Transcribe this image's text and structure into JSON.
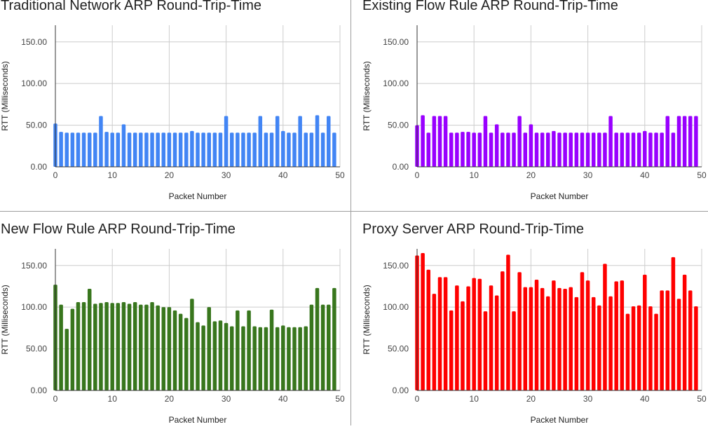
{
  "chart_data": [
    {
      "type": "bar",
      "title": "Traditional Network ARP Round-Trip-Time",
      "xlabel": "Packet Number",
      "ylabel": "RTT (Milliseconds)",
      "xlim": [
        0,
        50
      ],
      "ylim": [
        0,
        170
      ],
      "x_ticks": [
        "0",
        "10",
        "20",
        "30",
        "40",
        "50"
      ],
      "y_ticks": [
        "0.00",
        "50.00",
        "100.00",
        "150.00"
      ],
      "grid": true,
      "color": "#4285f4",
      "x": [
        0,
        1,
        2,
        3,
        4,
        5,
        6,
        7,
        8,
        9,
        10,
        11,
        12,
        13,
        14,
        15,
        16,
        17,
        18,
        19,
        20,
        21,
        22,
        23,
        24,
        25,
        26,
        27,
        28,
        29,
        30,
        31,
        32,
        33,
        34,
        35,
        36,
        37,
        38,
        39,
        40,
        41,
        42,
        43,
        44,
        45,
        46,
        47,
        48,
        49
      ],
      "values": [
        52,
        42,
        41,
        41,
        41,
        41,
        41,
        41,
        61,
        42,
        41,
        41,
        51,
        41,
        41,
        41,
        41,
        41,
        41,
        41,
        41,
        41,
        41,
        41,
        43,
        41,
        41,
        41,
        41,
        41,
        61,
        41,
        41,
        41,
        41,
        41,
        61,
        41,
        41,
        61,
        43,
        41,
        41,
        61,
        41,
        41,
        62,
        41,
        61,
        41
      ]
    },
    {
      "type": "bar",
      "title": "Existing Flow Rule ARP Round-Trip-Time",
      "xlabel": "Packet Number",
      "ylabel": "RTT (Milliseconds)",
      "xlim": [
        0,
        50
      ],
      "ylim": [
        0,
        170
      ],
      "x_ticks": [
        "0",
        "10",
        "20",
        "30",
        "40",
        "50"
      ],
      "y_ticks": [
        "0.00",
        "50.00",
        "100.00",
        "150.00"
      ],
      "grid": true,
      "color": "#9900ff",
      "x": [
        0,
        1,
        2,
        3,
        4,
        5,
        6,
        7,
        8,
        9,
        10,
        11,
        12,
        13,
        14,
        15,
        16,
        17,
        18,
        19,
        20,
        21,
        22,
        23,
        24,
        25,
        26,
        27,
        28,
        29,
        30,
        31,
        32,
        33,
        34,
        35,
        36,
        37,
        38,
        39,
        40,
        41,
        42,
        43,
        44,
        45,
        46,
        47,
        48,
        49
      ],
      "values": [
        50,
        62,
        41,
        61,
        61,
        61,
        41,
        41,
        42,
        42,
        41,
        41,
        61,
        41,
        51,
        41,
        41,
        41,
        61,
        41,
        51,
        41,
        41,
        41,
        43,
        41,
        41,
        41,
        41,
        41,
        41,
        41,
        41,
        41,
        61,
        41,
        41,
        41,
        41,
        41,
        43,
        41,
        41,
        41,
        61,
        41,
        61,
        61,
        61,
        61
      ]
    },
    {
      "type": "bar",
      "title": "New Flow Rule ARP Round-Trip-Time",
      "xlabel": "Packet Number",
      "ylabel": "RTT (Milliseconds)",
      "xlim": [
        0,
        50
      ],
      "ylim": [
        0,
        170
      ],
      "x_ticks": [
        "0",
        "10",
        "20",
        "30",
        "40",
        "50"
      ],
      "y_ticks": [
        "0.00",
        "50.00",
        "100.00",
        "150.00"
      ],
      "grid": true,
      "color": "#38761d",
      "x": [
        0,
        1,
        2,
        3,
        4,
        5,
        6,
        7,
        8,
        9,
        10,
        11,
        12,
        13,
        14,
        15,
        16,
        17,
        18,
        19,
        20,
        21,
        22,
        23,
        24,
        25,
        26,
        27,
        28,
        29,
        30,
        31,
        32,
        33,
        34,
        35,
        36,
        37,
        38,
        39,
        40,
        41,
        42,
        43,
        44,
        45,
        46,
        47,
        48,
        49
      ],
      "values": [
        127,
        103,
        74,
        98,
        106,
        106,
        122,
        104,
        105,
        106,
        105,
        105,
        106,
        104,
        106,
        103,
        103,
        106,
        102,
        100,
        100,
        96,
        92,
        87,
        110,
        82,
        78,
        100,
        83,
        84,
        81,
        77,
        96,
        77,
        96,
        77,
        76,
        76,
        97,
        76,
        78,
        76,
        76,
        76,
        77,
        103,
        123,
        103,
        103,
        123
      ]
    },
    {
      "type": "bar",
      "title": "Proxy Server ARP Round-Trip-Time",
      "xlabel": "Packet Number",
      "ylabel": "RTT (Milliseconds)",
      "xlim": [
        0,
        50
      ],
      "ylim": [
        0,
        170
      ],
      "x_ticks": [
        "0",
        "10",
        "20",
        "30",
        "40",
        "50"
      ],
      "y_ticks": [
        "0.00",
        "50.00",
        "100.00",
        "150.00"
      ],
      "grid": true,
      "color": "#ff0000",
      "x": [
        0,
        1,
        2,
        3,
        4,
        5,
        6,
        7,
        8,
        9,
        10,
        11,
        12,
        13,
        14,
        15,
        16,
        17,
        18,
        19,
        20,
        21,
        22,
        23,
        24,
        25,
        26,
        27,
        28,
        29,
        30,
        31,
        32,
        33,
        34,
        35,
        36,
        37,
        38,
        39,
        40,
        41,
        42,
        43,
        44,
        45,
        46,
        47,
        48,
        49
      ],
      "values": [
        162,
        165,
        145,
        116,
        136,
        136,
        96,
        126,
        107,
        125,
        135,
        134,
        95,
        126,
        114,
        143,
        163,
        95,
        142,
        124,
        124,
        133,
        123,
        113,
        132,
        123,
        122,
        124,
        112,
        142,
        132,
        112,
        102,
        152,
        113,
        131,
        132,
        92,
        101,
        102,
        139,
        101,
        92,
        120,
        120,
        160,
        110,
        139,
        120,
        101
      ]
    }
  ]
}
